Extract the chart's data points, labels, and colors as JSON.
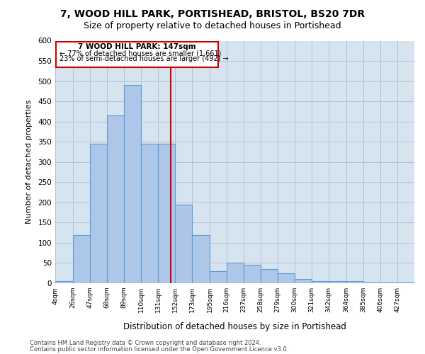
{
  "title1": "7, WOOD HILL PARK, PORTISHEAD, BRISTOL, BS20 7DR",
  "title2": "Size of property relative to detached houses in Portishead",
  "xlabel": "Distribution of detached houses by size in Portishead",
  "ylabel": "Number of detached properties",
  "footer1": "Contains HM Land Registry data © Crown copyright and database right 2024.",
  "footer2": "Contains public sector information licensed under the Open Government Licence v3.0.",
  "annotation_line1": "7 WOOD HILL PARK: 147sqm",
  "annotation_line2": "← 77% of detached houses are smaller (1,661)",
  "annotation_line3": "23% of semi-detached houses are larger (492) →",
  "bar_labels": [
    "4sqm",
    "26sqm",
    "47sqm",
    "68sqm",
    "89sqm",
    "110sqm",
    "131sqm",
    "152sqm",
    "173sqm",
    "195sqm",
    "216sqm",
    "237sqm",
    "258sqm",
    "279sqm",
    "300sqm",
    "321sqm",
    "342sqm",
    "364sqm",
    "385sqm",
    "406sqm",
    "427sqm"
  ],
  "bar_edges": [
    4,
    26,
    47,
    68,
    89,
    110,
    131,
    152,
    173,
    195,
    216,
    237,
    258,
    279,
    300,
    321,
    342,
    364,
    385,
    406,
    427,
    448
  ],
  "bar_heights": [
    5,
    120,
    345,
    415,
    490,
    345,
    345,
    195,
    120,
    30,
    50,
    45,
    35,
    25,
    10,
    5,
    5,
    5,
    2,
    2,
    2
  ],
  "bar_color": "#aec6e8",
  "bar_edgecolor": "#5b9bd5",
  "vline_color": "#cc0000",
  "vline_x": 147,
  "box_color": "#cc0000",
  "ylim": [
    0,
    600
  ],
  "yticks": [
    0,
    50,
    100,
    150,
    200,
    250,
    300,
    350,
    400,
    450,
    500,
    550,
    600
  ],
  "grid_color": "#b0c4d8",
  "bg_color": "#d6e4f0",
  "title1_fontsize": 10,
  "title2_fontsize": 9,
  "fig_width": 6.0,
  "fig_height": 5.0,
  "fig_dpi": 100
}
